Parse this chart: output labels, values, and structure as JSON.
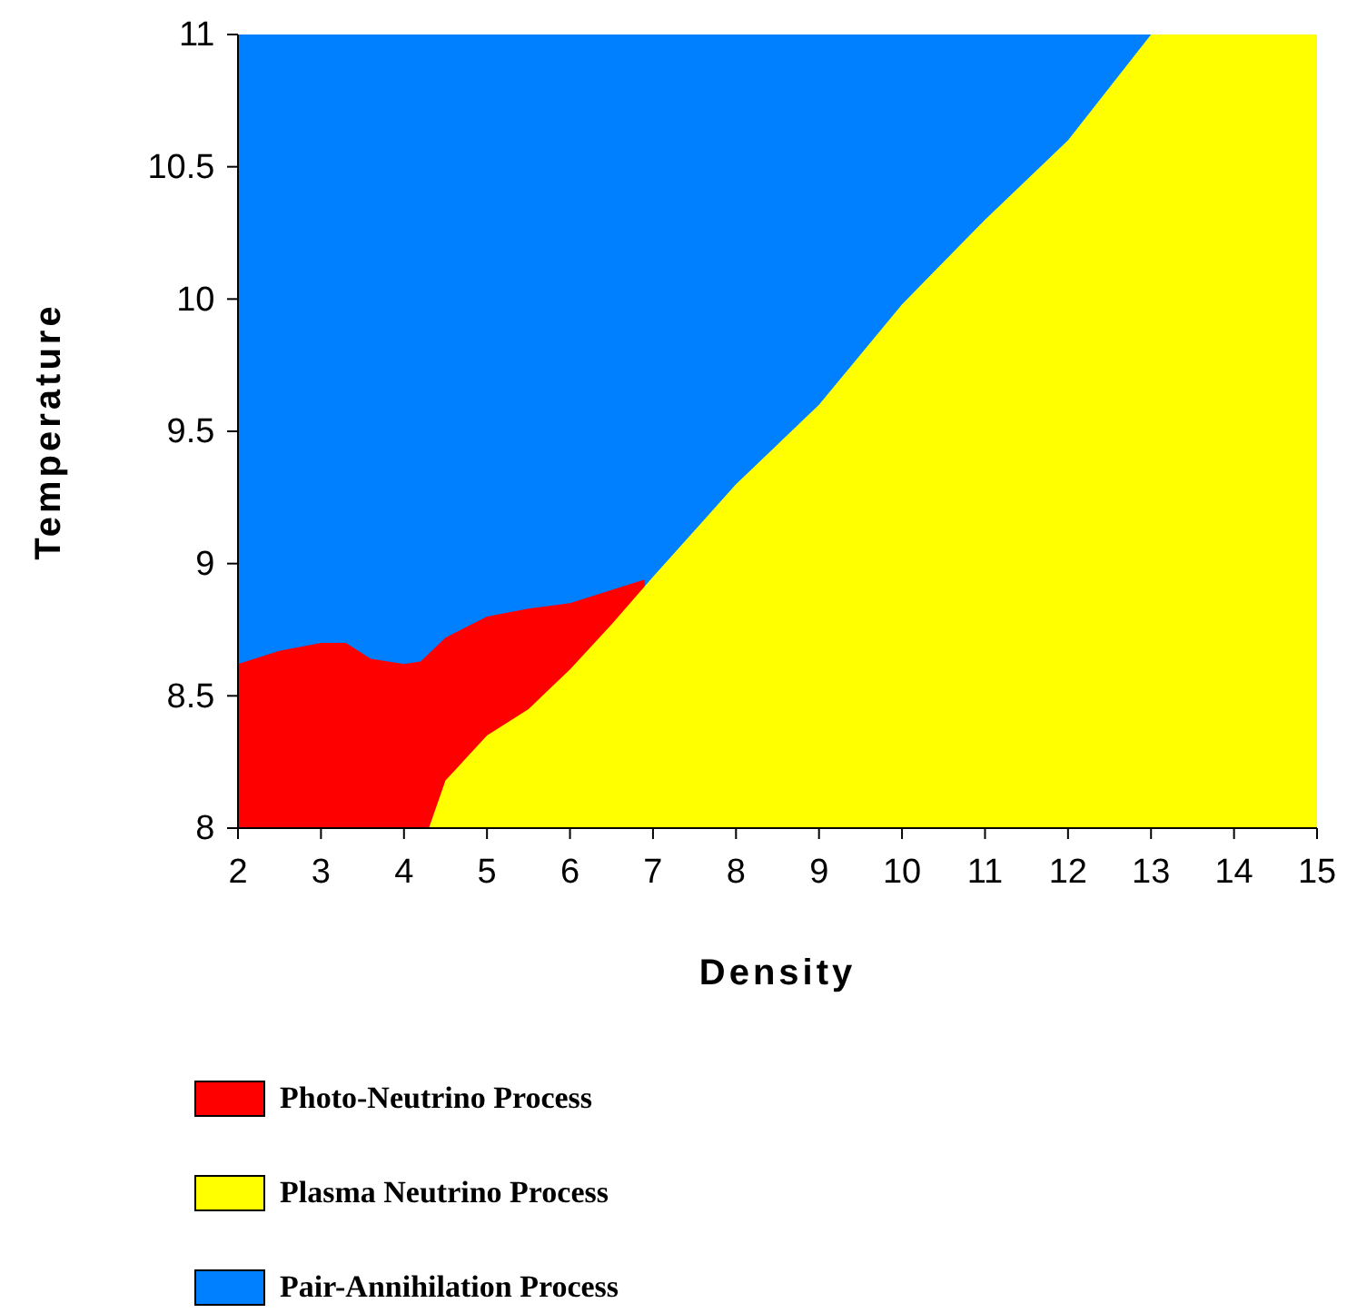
{
  "chart_data": {
    "type": "area",
    "xlabel": "Density",
    "ylabel": "Temperature",
    "xlim": [
      2,
      15
    ],
    "ylim": [
      8,
      11
    ],
    "xticks": [
      2,
      3,
      4,
      5,
      6,
      7,
      8,
      9,
      10,
      11,
      12,
      13,
      14,
      15
    ],
    "yticks": [
      8,
      8.5,
      9,
      9.5,
      10,
      10.5,
      11
    ],
    "grid": false,
    "legend": "bottom",
    "series": [
      {
        "name": "Pair-Annihilation Process",
        "color": "#0080ff",
        "x": [
          2,
          15
        ],
        "values": [
          11,
          11
        ]
      },
      {
        "name": "Photo-Neutrino Process",
        "color": "#ff0000",
        "x": [
          2,
          2.5,
          3,
          3.3,
          3.6,
          4,
          4.2,
          4.5,
          5,
          5.5,
          6,
          6.5,
          6.9
        ],
        "values": [
          8.62,
          8.67,
          8.7,
          8.7,
          8.64,
          8.62,
          8.63,
          8.72,
          8.8,
          8.83,
          8.85,
          8.9,
          8.94
        ]
      },
      {
        "name": "Plasma Neutrino Process",
        "color": "#ffff00",
        "x": [
          4.3,
          4.5,
          5,
          5.5,
          6,
          6.5,
          7,
          8,
          9,
          10,
          11,
          12,
          12.5,
          13,
          15
        ],
        "values": [
          8,
          8.18,
          8.35,
          8.45,
          8.6,
          8.77,
          8.95,
          9.3,
          9.6,
          9.98,
          10.3,
          10.6,
          10.8,
          11,
          11
        ]
      }
    ]
  }
}
